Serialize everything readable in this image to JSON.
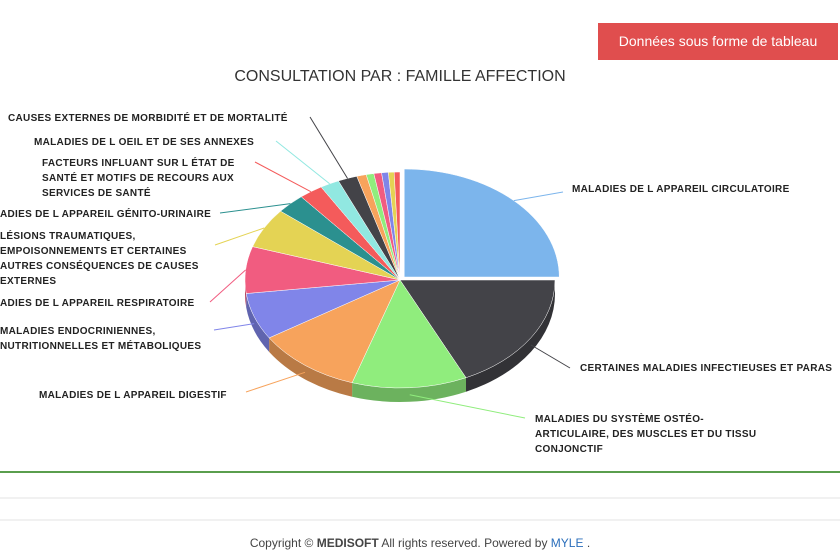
{
  "button": "Données sous forme de tableau",
  "chart_data": {
    "type": "pie",
    "title": "CONSULTATION PAR : FAMILLE AFFECTION",
    "categories": [
      "MALADIES DE L APPAREIL CIRCULATOIRE",
      "CERTAINES MALADIES INFECTIEUSES ET PARAS",
      "MALADIES DU SYSTÈME OSTÉO-\nARTICULAIRE, DES MUSCLES ET DU TISSU\nCONJONCTIF",
      "MALADIES DE L APPAREIL DIGESTIF",
      "MALADIES ENDOCRINIENNES,\nNUTRITIONNELLES ET MÉTABOLIQUES",
      "ADIES DE L APPAREIL RESPIRATOIRE",
      "LÉSIONS TRAUMATIQUES,\nEMPOISONNEMENTS ET CERTAINES\nAUTRES CONSÉQUENCES DE CAUSES\nEXTERNES",
      "ADIES DE L APPAREIL GÉNITO-URINAIRE",
      "FACTEURS INFLUANT SUR L ÉTAT DE\nSANTÉ ET MOTIFS DE RECOURS AUX\nSERVICES DE SANTÉ",
      "MALADIES DE L OEIL ET DE SES ANNEXES",
      "CAUSES EXTERNES DE MORBIDITÉ ET DE MORTALITÉ",
      null,
      null,
      null,
      null,
      null,
      null
    ],
    "values": [
      25,
      18,
      12,
      11,
      7,
      7,
      6,
      3,
      2.5,
      2,
      2,
      1,
      0.8,
      0.8,
      0.7,
      0.6,
      0.6
    ],
    "colors": [
      "#7cb5ec",
      "#434348",
      "#90ed7d",
      "#f7a35c",
      "#8085e9",
      "#f15c80",
      "#e4d354",
      "#2b908f",
      "#f45b5b",
      "#91e8e1",
      "#434348",
      "#f7a35c",
      "#90ed7d",
      "#f15c80",
      "#8085e9",
      "#e4d354",
      "#f45b5b"
    ]
  },
  "footer": {
    "copyright": "Copyright ©",
    "company": "MEDISOFT",
    "rights": "All rights reserved. Powered by",
    "brand": "MYLE",
    "end": "."
  }
}
